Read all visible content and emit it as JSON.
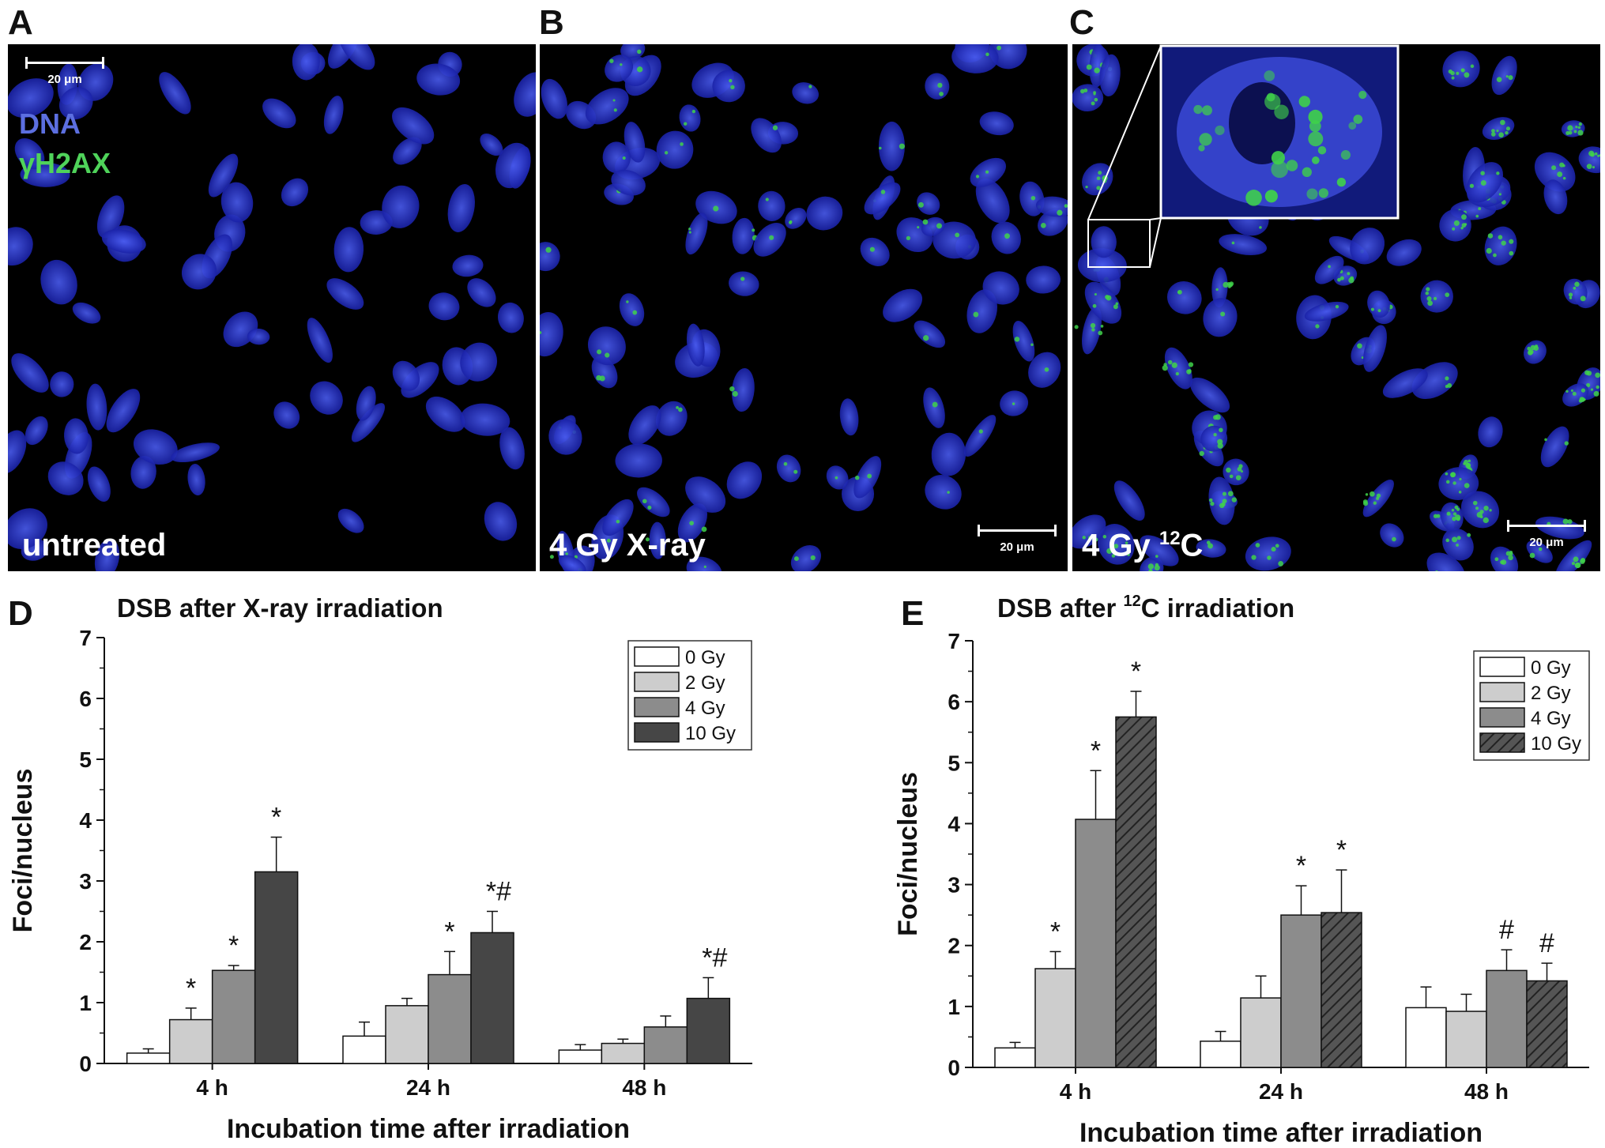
{
  "panels": {
    "A": {
      "letter": "A",
      "label": "untreated",
      "scale_bar": "20 μm",
      "legend_dna": "DNA",
      "legend_gh2ax": "γH2AX"
    },
    "B": {
      "letter": "B",
      "label": "4 Gy X-ray",
      "scale_bar": "20 μm"
    },
    "C": {
      "letter": "C",
      "label_prefix": "4 Gy ",
      "label_sup": "12",
      "label_suffix": "C",
      "scale_bar": "20 μm"
    },
    "D": {
      "letter": "D"
    },
    "E": {
      "letter": "E"
    }
  },
  "colors": {
    "dna": "#2a37d8",
    "gh2ax": "#3fd14a",
    "legend_dna_text": "#5c6fe0",
    "legend_gh2ax_text": "#4fd35a"
  },
  "chart_data": [
    {
      "type": "bar",
      "title": "DSB after X-ray irradiation",
      "xlabel": "Incubation time after irradiation",
      "ylabel": "Foci/nucleus",
      "ylim": [
        0,
        7
      ],
      "yticks": [
        0,
        1,
        2,
        3,
        4,
        5,
        6,
        7
      ],
      "categories": [
        "4 h",
        "24 h",
        "48 h"
      ],
      "legend_position": "top-right",
      "series": [
        {
          "name": "0 Gy",
          "values": [
            0.17,
            0.45,
            0.22
          ],
          "errors": [
            0.07,
            0.23,
            0.09
          ],
          "fill": "#ffffff",
          "hatch": false,
          "markers": [
            "",
            "",
            ""
          ]
        },
        {
          "name": "2 Gy",
          "values": [
            0.72,
            0.95,
            0.33
          ],
          "errors": [
            0.19,
            0.12,
            0.07
          ],
          "fill": "#cdcdcd",
          "hatch": false,
          "markers": [
            "*",
            "",
            ""
          ]
        },
        {
          "name": "4 Gy",
          "values": [
            1.53,
            1.46,
            0.6
          ],
          "errors": [
            0.08,
            0.38,
            0.18
          ],
          "fill": "#8c8c8c",
          "hatch": false,
          "markers": [
            "*",
            "*",
            ""
          ]
        },
        {
          "name": "10 Gy",
          "values": [
            3.15,
            2.15,
            1.07
          ],
          "errors": [
            0.57,
            0.35,
            0.34
          ],
          "fill": "#464646",
          "hatch": false,
          "markers": [
            "*",
            "*#",
            "*#"
          ]
        }
      ]
    },
    {
      "type": "bar",
      "title_prefix": "DSB after ",
      "title_sup": "12",
      "title_suffix": "C irradiation",
      "xlabel": "Incubation time after irradiation",
      "ylabel": "Foci/nucleus",
      "ylim": [
        0,
        7
      ],
      "yticks": [
        0,
        1,
        2,
        3,
        4,
        5,
        6,
        7
      ],
      "categories": [
        "4 h",
        "24 h",
        "48 h"
      ],
      "legend_position": "top-right",
      "series": [
        {
          "name": "0 Gy",
          "values": [
            0.32,
            0.43,
            0.98
          ],
          "errors": [
            0.09,
            0.16,
            0.34
          ],
          "fill": "#ffffff",
          "hatch": false,
          "markers": [
            "",
            "",
            ""
          ]
        },
        {
          "name": "2 Gy",
          "values": [
            1.62,
            1.14,
            0.92
          ],
          "errors": [
            0.28,
            0.36,
            0.28
          ],
          "fill": "#cdcdcd",
          "hatch": false,
          "markers": [
            "*",
            "",
            ""
          ]
        },
        {
          "name": "4 Gy",
          "values": [
            4.07,
            2.5,
            1.59
          ],
          "errors": [
            0.8,
            0.48,
            0.34
          ],
          "fill": "#8c8c8c",
          "hatch": false,
          "markers": [
            "*",
            "*",
            "#"
          ]
        },
        {
          "name": "10 Gy",
          "values": [
            5.75,
            2.54,
            1.42
          ],
          "errors": [
            0.42,
            0.7,
            0.29
          ],
          "fill": "#464646",
          "hatch": true,
          "markers": [
            "*",
            "*",
            "#"
          ]
        }
      ]
    }
  ]
}
